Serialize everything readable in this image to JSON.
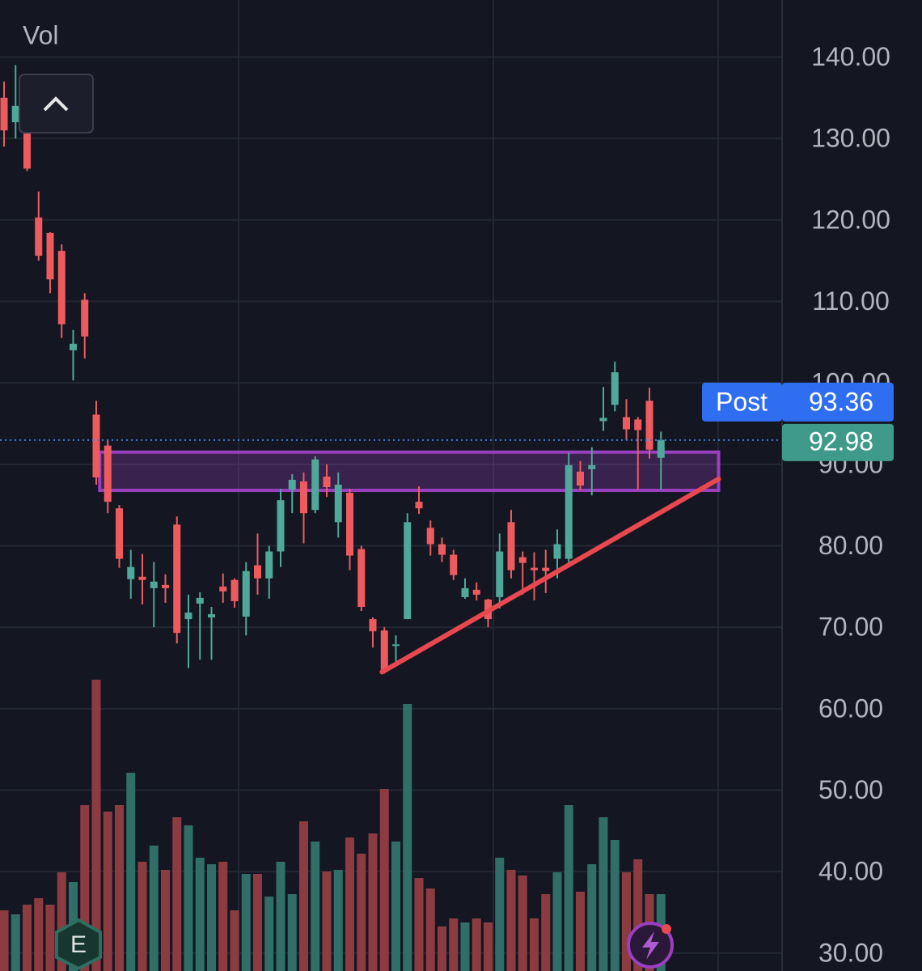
{
  "chart_data": {
    "type": "candlestick",
    "volume_label": "Vol",
    "ylim": [
      27.8,
      147.0
    ],
    "yticks": [
      {
        "value": 30,
        "label": "30.00"
      },
      {
        "value": 40,
        "label": "40.00"
      },
      {
        "value": 50,
        "label": "50.00"
      },
      {
        "value": 60,
        "label": "60.00"
      },
      {
        "value": 70,
        "label": "70.00"
      },
      {
        "value": 80,
        "label": "80.00"
      },
      {
        "value": 90,
        "label": "90.00"
      },
      {
        "value": 100,
        "label": "100.00"
      },
      {
        "value": 110,
        "label": "110.00"
      },
      {
        "value": 120,
        "label": "120.00"
      },
      {
        "value": 130,
        "label": "130.00"
      },
      {
        "value": 140,
        "label": "140.00"
      }
    ],
    "up_color": "#4fa89a",
    "down_color": "#ee5b5e",
    "volume_up_color": "#2f6f67",
    "volume_down_color": "#8c3c41",
    "open": [
      135,
      132,
      132,
      120.3,
      118.4,
      116.2,
      104,
      110.2,
      96.1,
      92.3,
      84.6,
      75.9,
      76.2,
      74.8,
      75.2,
      82.6,
      71,
      72.9,
      71.2,
      75,
      75.8,
      71.3,
      77.6,
      76,
      79.3,
      86.9,
      87.9,
      84.4,
      88.5,
      82.9,
      86.5,
      79.6,
      71,
      69.6,
      67.7,
      71,
      85.4,
      82.2,
      80.2,
      78.9,
      73.7,
      74.6,
      73.4,
      73.7,
      82.9,
      78.6,
      77.3,
      77.3,
      78.4,
      78.4,
      89.1,
      89.4,
      95.3,
      97.3,
      95.8,
      95.5,
      97.8,
      90.8
    ],
    "high": [
      137,
      139,
      133,
      123.5,
      118.5,
      117,
      106.5,
      111,
      97.8,
      93,
      85,
      79.5,
      79,
      78,
      76.5,
      83.6,
      74,
      74.3,
      72.5,
      76.6,
      76,
      78,
      81.5,
      80,
      87,
      88.8,
      89,
      91,
      90,
      89,
      87,
      80,
      71.2,
      70,
      69,
      84,
      87.3,
      83.1,
      81,
      79.5,
      76,
      75.5,
      73.5,
      81.5,
      84.4,
      79.3,
      79.2,
      79.5,
      82,
      91.4,
      90.4,
      92.1,
      99.5,
      102.6,
      98,
      95.8,
      99.4,
      94
    ],
    "low": [
      129,
      130,
      126,
      115,
      111,
      105.5,
      100.3,
      103,
      87.5,
      84,
      77.3,
      73.5,
      72.8,
      70,
      73,
      68,
      65,
      66,
      66,
      73,
      72.4,
      69,
      74,
      73.5,
      77.4,
      84,
      80.3,
      84,
      86,
      81,
      77,
      72,
      67.5,
      64.3,
      65.5,
      71,
      83.9,
      78.8,
      78,
      75.8,
      73.5,
      73.3,
      70,
      72.3,
      76,
      74,
      73.3,
      74.2,
      76,
      77.6,
      86.8,
      86.2,
      94.1,
      96.5,
      93,
      86.9,
      90.7,
      86.9
    ],
    "close": [
      131,
      134,
      126.3,
      115.6,
      112.7,
      107.2,
      104.8,
      105.7,
      88.4,
      85.4,
      78.4,
      77.4,
      75.8,
      75.6,
      74.8,
      69.3,
      71.8,
      73.6,
      71.6,
      74.4,
      73.2,
      76.9,
      76,
      79.3,
      85.6,
      88.1,
      84,
      90.6,
      87.2,
      87.5,
      78.8,
      72.5,
      69.5,
      64.5,
      67.9,
      82.9,
      84.6,
      80.2,
      78.9,
      76.4,
      74.8,
      74,
      71,
      79.3,
      77,
      77.9,
      77,
      76.9,
      80.2,
      89.9,
      87.4,
      89.9,
      95.7,
      101.3,
      94.3,
      94.2,
      91.8,
      93
    ],
    "volume_lim": [
      0,
      400
    ],
    "volume": [
      75,
      70,
      82,
      90,
      82,
      122,
      110,
      205,
      360,
      197,
      205,
      245,
      135,
      155,
      125,
      190,
      180,
      140,
      132,
      135,
      75,
      120,
      120,
      92,
      135,
      95,
      185,
      160,
      123,
      125,
      165,
      145,
      170,
      225,
      160,
      330,
      115,
      102,
      55,
      65,
      60,
      65,
      60,
      140,
      125,
      118,
      65,
      95,
      122,
      205,
      98,
      132,
      190,
      162,
      122,
      138,
      95,
      95
    ],
    "zone": {
      "start_index": 8.3,
      "end_index": 62,
      "high": 91.5,
      "low": 86.8,
      "color": "#9a3fc0"
    },
    "trendline": {
      "start_index": 32.8,
      "end_index": 62,
      "start": 64.5,
      "end": 88.2,
      "color": "#e8484e"
    },
    "last_price": 92.98,
    "post": {
      "label": "Post",
      "value": 93.36
    },
    "earnings_badge": "E"
  }
}
